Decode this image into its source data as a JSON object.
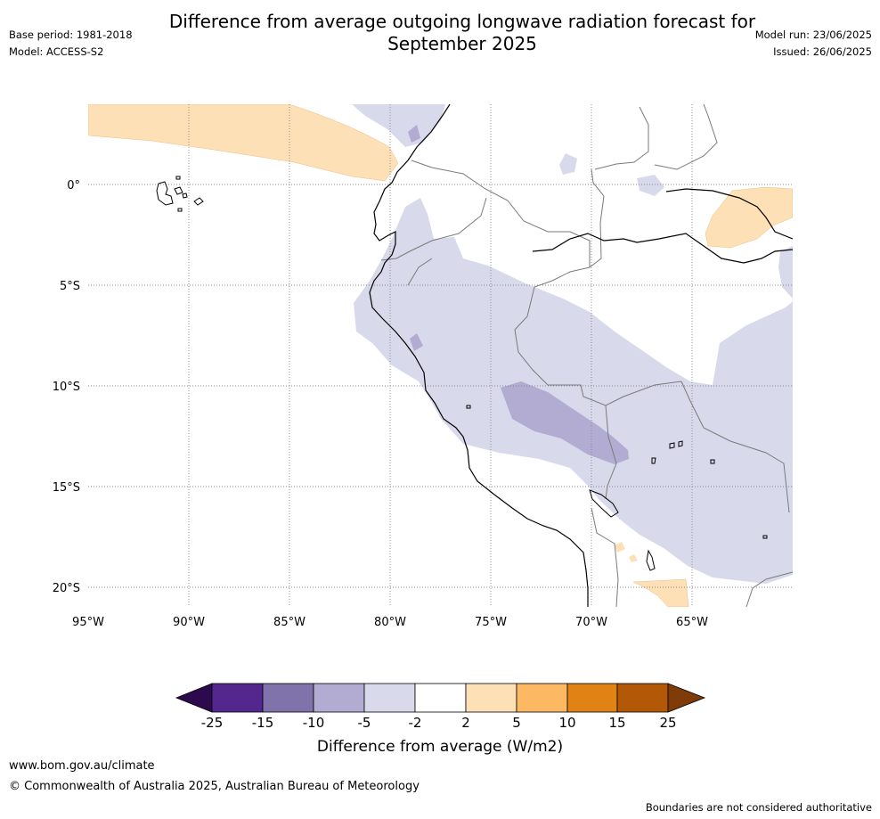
{
  "header": {
    "title_line1": "Difference from average outgoing longwave radiation forecast for",
    "title_line2": "September 2025",
    "base_period": "Base period: 1981-2018",
    "model": "Model: ACCESS-S2",
    "model_run": "Model run: 23/06/2025",
    "issued": "Issued: 26/06/2025"
  },
  "map": {
    "lat_labels": [
      "0°",
      "5°S",
      "10°S",
      "15°S",
      "20°S"
    ],
    "lon_labels": [
      "95°W",
      "90°W",
      "85°W",
      "80°W",
      "75°W",
      "70°W",
      "65°W"
    ]
  },
  "colorbar": {
    "tick_labels": [
      "-25",
      "-15",
      "-10",
      "-5",
      "-2",
      "2",
      "5",
      "10",
      "15",
      "25"
    ],
    "colors": [
      "#2d0a4e",
      "#54278f",
      "#8073ac",
      "#b2abd2",
      "#d8daeb",
      "#ffffff",
      "#fee0b6",
      "#fdb863",
      "#e08214",
      "#b35806",
      "#7f3b08"
    ],
    "label": "Difference from average (W/m2)"
  },
  "footer": {
    "url": "www.bom.gov.au/climate",
    "copyright": "© Commonwealth of Australia 2025, Australian Bureau of Meteorology",
    "disclaimer": "Boundaries are not considered authoritative"
  }
}
